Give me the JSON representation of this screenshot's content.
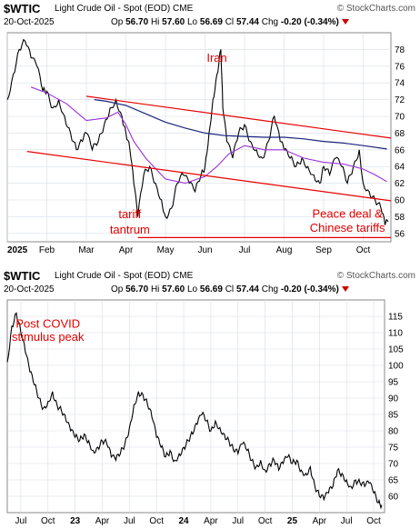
{
  "top": {
    "symbol": "$WTIC",
    "description": "Light Crude Oil - Spot (EOD) CME",
    "brand": "© StockCharts.com",
    "date": "20-Oct-2025",
    "quote": {
      "op_label": "Op",
      "op": "56.70",
      "hi_label": "Hi",
      "hi": "57.60",
      "lo_label": "Lo",
      "lo": "56.69",
      "cl_label": "Cl",
      "cl": "57.44",
      "chg_label": "Chg",
      "chg": "-0.20 (-0.34%)"
    }
  },
  "bottom": {
    "symbol": "$WTIC",
    "description": "Light Crude Oil - Spot (EOD) CME",
    "brand": "© StockCharts.com",
    "date": "20-Oct-2025",
    "quote": {
      "op_label": "Op",
      "op": "56.70",
      "hi_label": "Hi",
      "hi": "57.60",
      "lo_label": "Lo",
      "lo": "56.69",
      "cl_label": "Cl",
      "cl": "57.44",
      "chg_label": "Chg",
      "chg": "-0.20 (-0.34%)"
    }
  },
  "colors": {
    "price": "#000000",
    "ma_short": "#9b30d9",
    "ma_long": "#1a237e",
    "trend": "#e60000",
    "chg_triangle": "#cc0000"
  },
  "chart_data": [
    {
      "type": "line",
      "ylim": [
        55,
        80
      ],
      "yticks": [
        56,
        58,
        60,
        62,
        64,
        66,
        68,
        70,
        72,
        74,
        76,
        78
      ],
      "xticks": [
        "2025",
        "Feb",
        "Mar",
        "Apr",
        "May",
        "Jun",
        "Jul",
        "Aug",
        "Sep",
        "Oct"
      ],
      "x_month_pos": [
        0,
        1,
        2,
        3,
        4,
        5,
        6,
        7,
        8,
        9
      ],
      "x_range": [
        0,
        9.7
      ],
      "series": [
        {
          "role": "price",
          "x": [
            0.0,
            0.15,
            0.3,
            0.45,
            0.6,
            0.75,
            0.9,
            1.0,
            1.15,
            1.3,
            1.45,
            1.6,
            1.75,
            1.9,
            2.0,
            2.15,
            2.3,
            2.45,
            2.6,
            2.75,
            2.9,
            3.0,
            3.1,
            3.2,
            3.3,
            3.45,
            3.6,
            3.75,
            3.9,
            4.0,
            4.15,
            4.3,
            4.45,
            4.6,
            4.75,
            4.9,
            5.0,
            5.1,
            5.2,
            5.3,
            5.4,
            5.45,
            5.55,
            5.7,
            5.85,
            6.0,
            6.15,
            6.3,
            6.45,
            6.6,
            6.75,
            6.9,
            7.0,
            7.15,
            7.3,
            7.45,
            7.6,
            7.75,
            7.9,
            8.0,
            8.15,
            8.3,
            8.45,
            8.6,
            8.75,
            8.9,
            9.0,
            9.15,
            9.3,
            9.45,
            9.55,
            9.63
          ],
          "y": [
            72,
            75,
            78,
            79,
            77,
            76,
            73,
            73,
            71,
            72,
            70,
            68,
            66,
            67,
            68,
            66,
            67,
            69,
            71,
            72,
            70,
            68,
            66,
            62,
            58,
            63,
            64,
            62,
            60,
            58,
            59,
            62,
            63,
            62,
            61,
            63,
            64,
            68,
            72,
            75,
            78,
            71,
            67,
            65,
            68,
            69,
            67,
            66,
            65,
            67,
            70,
            67,
            66,
            65,
            64,
            65,
            64,
            63,
            62,
            64,
            63,
            65,
            64,
            62,
            64,
            66,
            62,
            61,
            60,
            59,
            57,
            57.4
          ]
        },
        {
          "role": "ma_short",
          "x": [
            0.6,
            1.0,
            1.5,
            2.0,
            2.5,
            2.8,
            3.0,
            3.2,
            3.5,
            4.0,
            4.5,
            5.0,
            5.3,
            5.6,
            6.0,
            6.5,
            7.0,
            7.5,
            8.0,
            8.5,
            9.0,
            9.3,
            9.6
          ],
          "y": [
            73.5,
            72.8,
            71.5,
            69.5,
            69.8,
            70.5,
            69.0,
            67.0,
            65.0,
            62.5,
            62.0,
            62.8,
            64.0,
            65.5,
            66.5,
            66.0,
            66.0,
            65.0,
            64.5,
            64.3,
            63.7,
            63.0,
            62.2
          ]
        },
        {
          "role": "ma_long",
          "x": [
            2.2,
            2.5,
            3.0,
            3.5,
            4.0,
            4.5,
            5.0,
            5.5,
            6.0,
            6.5,
            7.0,
            7.5,
            8.0,
            8.5,
            9.0,
            9.6
          ],
          "y": [
            72.0,
            71.8,
            71.3,
            70.3,
            69.3,
            68.6,
            68.0,
            67.7,
            67.6,
            67.5,
            67.5,
            67.3,
            67.0,
            66.8,
            66.5,
            66.1
          ]
        },
        {
          "role": "trend",
          "x": [
            2.0,
            9.7
          ],
          "y": [
            72.4,
            67.4
          ]
        },
        {
          "role": "trend",
          "x": [
            0.5,
            9.7
          ],
          "y": [
            65.8,
            59.9
          ]
        },
        {
          "role": "trend",
          "x": [
            3.3,
            9.7
          ],
          "y": [
            55.5,
            55.5
          ]
        }
      ],
      "annotations": [
        {
          "text": "Iran",
          "x": 5.3,
          "y": 76.5
        },
        {
          "text": "tariff",
          "x": 3.1,
          "y": 57.8
        },
        {
          "text": "tantrum",
          "x": 3.1,
          "y": 56.0
        },
        {
          "text": "Peace deal &",
          "x": 8.6,
          "y": 57.9
        },
        {
          "text": "Chinese tariffs",
          "x": 8.6,
          "y": 56.2
        }
      ]
    },
    {
      "type": "line",
      "ylim": [
        55,
        120
      ],
      "yticks": [
        60,
        65,
        70,
        75,
        80,
        85,
        90,
        95,
        100,
        105,
        110,
        115
      ],
      "xticks": [
        "Jul",
        "Oct",
        "23",
        "Apr",
        "Jul",
        "Oct",
        "24",
        "Apr",
        "Jul",
        "Oct",
        "25",
        "Apr",
        "Jul",
        "Oct"
      ],
      "x_month_pos": [
        1.5,
        4.5,
        7.5,
        10.5,
        13.5,
        16.5,
        19.5,
        22.5,
        25.5,
        28.5,
        31.5,
        34.5,
        37.5,
        40.5
      ],
      "x_range": [
        0,
        41.7
      ],
      "series": [
        {
          "role": "price",
          "x": [
            0.0,
            0.5,
            1.0,
            1.5,
            2.0,
            2.5,
            3.0,
            3.5,
            4.0,
            4.5,
            5.0,
            5.5,
            6.0,
            6.5,
            7.0,
            7.5,
            8.0,
            8.5,
            9.0,
            9.5,
            10.0,
            10.5,
            11.0,
            11.5,
            12.0,
            12.5,
            13.0,
            13.5,
            14.0,
            14.5,
            15.0,
            15.5,
            16.0,
            16.5,
            17.0,
            17.5,
            18.0,
            18.5,
            19.0,
            19.5,
            20.0,
            20.5,
            21.0,
            21.5,
            22.0,
            22.5,
            23.0,
            23.5,
            24.0,
            24.5,
            25.0,
            25.5,
            26.0,
            26.5,
            27.0,
            27.5,
            28.0,
            28.5,
            29.0,
            29.5,
            30.0,
            30.5,
            31.0,
            31.5,
            32.0,
            32.5,
            33.0,
            33.5,
            34.0,
            34.5,
            35.0,
            35.5,
            36.0,
            36.5,
            37.0,
            37.5,
            38.0,
            38.5,
            39.0,
            39.5,
            40.0,
            40.5,
            41.0,
            41.4
          ],
          "y": [
            101,
            112,
            116,
            110,
            104,
            98,
            94,
            90,
            87,
            89,
            92,
            88,
            86,
            83,
            80,
            78,
            77,
            79,
            77,
            74,
            75,
            77,
            76,
            72,
            71,
            73,
            76,
            81,
            88,
            92,
            91,
            88,
            84,
            78,
            75,
            72,
            74,
            71,
            73,
            75,
            77,
            79,
            82,
            85,
            83,
            80,
            83,
            81,
            79,
            77,
            74,
            73,
            76,
            74,
            71,
            69,
            71,
            68,
            70,
            71,
            68,
            70,
            72,
            70,
            71,
            68,
            67,
            69,
            63,
            60,
            59,
            61,
            63,
            68,
            67,
            65,
            63,
            65,
            64,
            63,
            64,
            61,
            58,
            57.4
          ]
        }
      ],
      "annotations": [
        {
          "text": "Post COVID",
          "x": 4.5,
          "y": 111.5
        },
        {
          "text": "stimulus peak",
          "x": 4.5,
          "y": 107.5
        }
      ]
    }
  ]
}
